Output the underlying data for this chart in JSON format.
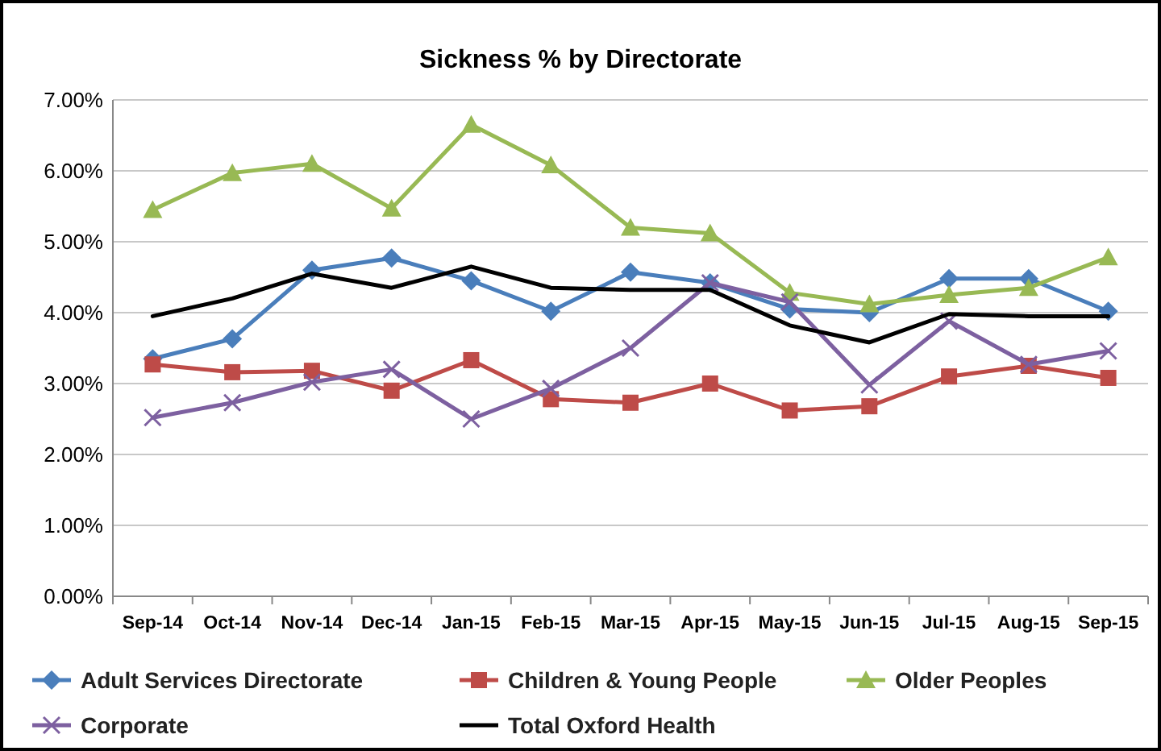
{
  "chart_data": {
    "type": "line",
    "title": "Sickness % by Directorate",
    "categories": [
      "Sep-14",
      "Oct-14",
      "Nov-14",
      "Dec-14",
      "Jan-15",
      "Feb-15",
      "Mar-15",
      "Apr-15",
      "May-15",
      "Jun-15",
      "Jul-15",
      "Aug-15",
      "Sep-15"
    ],
    "series": [
      {
        "name": "Adult Services Directorate",
        "color": "#4a7ebb",
        "marker": "diamond",
        "values": [
          3.35,
          3.63,
          4.6,
          4.77,
          4.45,
          4.02,
          4.57,
          4.42,
          4.05,
          4.0,
          4.48,
          4.48,
          4.02
        ]
      },
      {
        "name": "Children & Young People",
        "color": "#be4b48",
        "marker": "square",
        "values": [
          3.27,
          3.16,
          3.18,
          2.9,
          3.33,
          2.78,
          2.73,
          3.0,
          2.62,
          2.68,
          3.1,
          3.25,
          3.08
        ]
      },
      {
        "name": "Older Peoples",
        "color": "#98b954",
        "marker": "triangle",
        "values": [
          5.45,
          5.97,
          6.1,
          5.47,
          6.65,
          6.08,
          5.2,
          5.12,
          4.28,
          4.12,
          4.25,
          4.35,
          4.78
        ]
      },
      {
        "name": "Corporate",
        "color": "#7d60a0",
        "marker": "cross",
        "values": [
          2.52,
          2.73,
          3.02,
          3.2,
          2.5,
          2.93,
          3.5,
          4.42,
          4.15,
          2.98,
          3.88,
          3.27,
          3.46
        ]
      },
      {
        "name": "Total Oxford Health",
        "color": "#000000",
        "marker": "none",
        "values": [
          3.95,
          4.2,
          4.55,
          4.35,
          4.65,
          4.35,
          4.32,
          4.32,
          3.82,
          3.58,
          3.98,
          3.95,
          3.95
        ]
      }
    ],
    "ylim": [
      0,
      7
    ],
    "yticks": [
      {
        "value": 0,
        "label": "0.00%"
      },
      {
        "value": 1,
        "label": "1.00%"
      },
      {
        "value": 2,
        "label": "2.00%"
      },
      {
        "value": 3,
        "label": "3.00%"
      },
      {
        "value": 4,
        "label": "4.00%"
      },
      {
        "value": 5,
        "label": "5.00%"
      },
      {
        "value": 6,
        "label": "6.00%"
      },
      {
        "value": 7,
        "label": "7.00%"
      }
    ],
    "grid": "y",
    "legend": "bottom",
    "line_style": "solid"
  }
}
